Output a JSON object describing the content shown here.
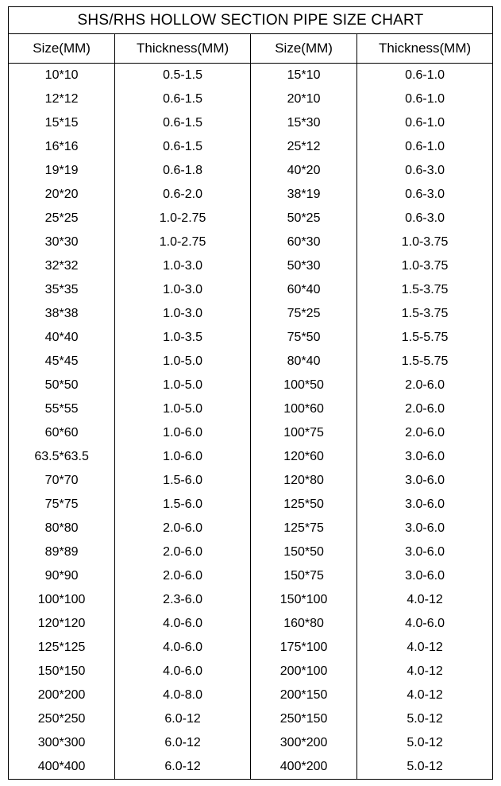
{
  "table": {
    "type": "table",
    "title": "SHS/RHS HOLLOW SECTION PIPE SIZE CHART",
    "title_fontsize": 19,
    "header_fontsize": 17,
    "cell_fontsize": 16,
    "background_color": "#ffffff",
    "text_color": "#000000",
    "border_color": "#000000",
    "column_widths_pct": [
      22,
      28,
      22,
      28
    ],
    "columns": [
      "Size(MM)",
      "Thickness(MM)",
      "Size(MM)",
      "Thickness(MM)"
    ],
    "rows": [
      [
        "10*10",
        "0.5-1.5",
        "15*10",
        "0.6-1.0"
      ],
      [
        "12*12",
        "0.6-1.5",
        "20*10",
        "0.6-1.0"
      ],
      [
        "15*15",
        "0.6-1.5",
        "15*30",
        "0.6-1.0"
      ],
      [
        "16*16",
        "0.6-1.5",
        "25*12",
        "0.6-1.0"
      ],
      [
        "19*19",
        "0.6-1.8",
        "40*20",
        "0.6-3.0"
      ],
      [
        "20*20",
        "0.6-2.0",
        "38*19",
        "0.6-3.0"
      ],
      [
        "25*25",
        "1.0-2.75",
        "50*25",
        "0.6-3.0"
      ],
      [
        "30*30",
        "1.0-2.75",
        "60*30",
        "1.0-3.75"
      ],
      [
        "32*32",
        "1.0-3.0",
        "50*30",
        "1.0-3.75"
      ],
      [
        "35*35",
        "1.0-3.0",
        "60*40",
        "1.5-3.75"
      ],
      [
        "38*38",
        "1.0-3.0",
        "75*25",
        "1.5-3.75"
      ],
      [
        "40*40",
        "1.0-3.5",
        "75*50",
        "1.5-5.75"
      ],
      [
        "45*45",
        "1.0-5.0",
        "80*40",
        "1.5-5.75"
      ],
      [
        "50*50",
        "1.0-5.0",
        "100*50",
        "2.0-6.0"
      ],
      [
        "55*55",
        "1.0-5.0",
        "100*60",
        "2.0-6.0"
      ],
      [
        "60*60",
        "1.0-6.0",
        "100*75",
        "2.0-6.0"
      ],
      [
        "63.5*63.5",
        "1.0-6.0",
        "120*60",
        "3.0-6.0"
      ],
      [
        "70*70",
        "1.5-6.0",
        "120*80",
        "3.0-6.0"
      ],
      [
        "75*75",
        "1.5-6.0",
        "125*50",
        "3.0-6.0"
      ],
      [
        "80*80",
        "2.0-6.0",
        "125*75",
        "3.0-6.0"
      ],
      [
        "89*89",
        "2.0-6.0",
        "150*50",
        "3.0-6.0"
      ],
      [
        "90*90",
        "2.0-6.0",
        "150*75",
        "3.0-6.0"
      ],
      [
        "100*100",
        "2.3-6.0",
        "150*100",
        "4.0-12"
      ],
      [
        "120*120",
        "4.0-6.0",
        "160*80",
        "4.0-6.0"
      ],
      [
        "125*125",
        "4.0-6.0",
        "175*100",
        "4.0-12"
      ],
      [
        "150*150",
        "4.0-6.0",
        "200*100",
        "4.0-12"
      ],
      [
        "200*200",
        "4.0-8.0",
        "200*150",
        "4.0-12"
      ],
      [
        "250*250",
        "6.0-12",
        "250*150",
        "5.0-12"
      ],
      [
        "300*300",
        "6.0-12",
        "300*200",
        "5.0-12"
      ],
      [
        "400*400",
        "6.0-12",
        "400*200",
        "5.0-12"
      ]
    ]
  }
}
